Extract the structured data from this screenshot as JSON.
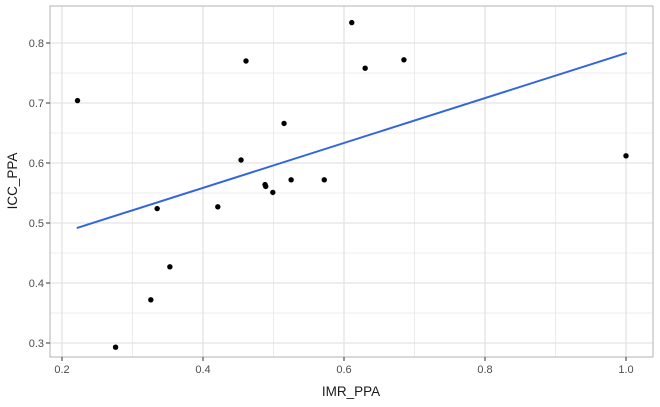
{
  "chart_data": {
    "type": "scatter",
    "title": "",
    "xlabel": "IMR_PPA",
    "ylabel": "ICC_PPA",
    "xlim": [
      0.2,
      1.0
    ],
    "ylim": [
      0.3,
      0.8
    ],
    "xticks": [
      "0.2",
      "0.4",
      "0.6",
      "0.8",
      "1.0"
    ],
    "yticks": [
      "0.3",
      "0.4",
      "0.5",
      "0.6",
      "0.7",
      "0.8"
    ],
    "grid": true,
    "points": [
      {
        "x": 0.222,
        "y": 0.704
      },
      {
        "x": 0.276,
        "y": 0.293
      },
      {
        "x": 0.326,
        "y": 0.372
      },
      {
        "x": 0.335,
        "y": 0.524
      },
      {
        "x": 0.353,
        "y": 0.427
      },
      {
        "x": 0.421,
        "y": 0.527
      },
      {
        "x": 0.454,
        "y": 0.605
      },
      {
        "x": 0.461,
        "y": 0.77
      },
      {
        "x": 0.488,
        "y": 0.564
      },
      {
        "x": 0.489,
        "y": 0.561
      },
      {
        "x": 0.499,
        "y": 0.551
      },
      {
        "x": 0.515,
        "y": 0.666
      },
      {
        "x": 0.525,
        "y": 0.572
      },
      {
        "x": 0.572,
        "y": 0.572
      },
      {
        "x": 0.611,
        "y": 0.834
      },
      {
        "x": 0.63,
        "y": 0.758
      },
      {
        "x": 0.685,
        "y": 0.772
      },
      {
        "x": 1.0,
        "y": 0.612
      }
    ],
    "trend_line": {
      "method": "linear",
      "color": "#3366dd",
      "x": [
        0.222,
        1.0
      ],
      "y": [
        0.492,
        0.783
      ]
    },
    "point_color": "#000000",
    "grid_color": "#dedede"
  }
}
